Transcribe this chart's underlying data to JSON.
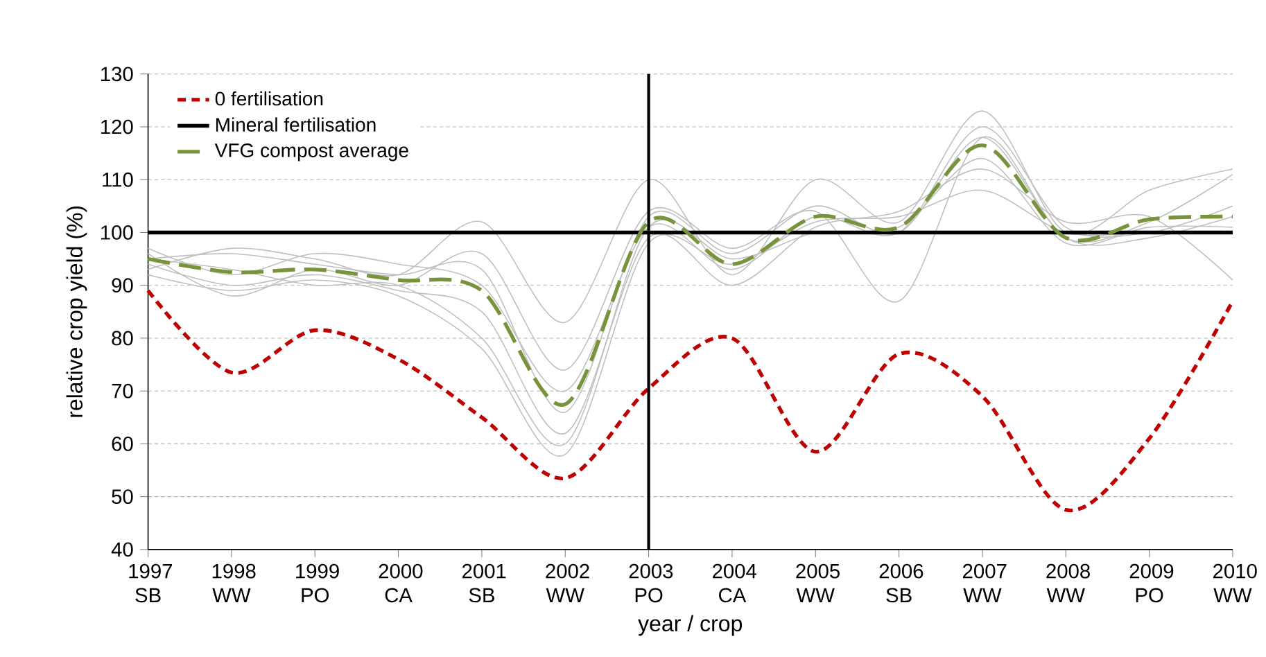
{
  "chart_data": {
    "type": "line",
    "xlabel": "year / crop",
    "ylabel": "relative crop yield (%)",
    "x": [
      1997,
      1998,
      1999,
      2000,
      2001,
      2002,
      2003,
      2004,
      2005,
      2006,
      2007,
      2008,
      2009,
      2010
    ],
    "xlim": [
      1997,
      2010
    ],
    "xticks": [
      {
        "value": 1997,
        "label": "1997 SB"
      },
      {
        "value": 1998,
        "label": "1998 WW"
      },
      {
        "value": 1999,
        "label": "1999 PO"
      },
      {
        "value": 2000,
        "label": "2000 CA"
      },
      {
        "value": 2001,
        "label": "2001 SB"
      },
      {
        "value": 2002,
        "label": "2002 WW"
      },
      {
        "value": 2003,
        "label": "2003 PO"
      },
      {
        "value": 2004,
        "label": "2004 CA"
      },
      {
        "value": 2005,
        "label": "2005 WW"
      },
      {
        "value": 2006,
        "label": "2006 SB"
      },
      {
        "value": 2007,
        "label": "2007 WW"
      },
      {
        "value": 2008,
        "label": "2008 WW"
      },
      {
        "value": 2009,
        "label": "2009 PO"
      },
      {
        "value": 2010,
        "label": "2010 WW"
      }
    ],
    "ylim": [
      40,
      130
    ],
    "yticks": [
      40,
      50,
      60,
      70,
      80,
      90,
      100,
      110,
      120,
      130
    ],
    "grid": "y",
    "legend": "top left",
    "marker": "none",
    "series": [
      {
        "color": "#c0c0c0",
        "line_style": "solid",
        "values": [
          97,
          92,
          96,
          94,
          90,
          70,
          101,
          93,
          103,
          100,
          120,
          101,
          100,
          105
        ]
      },
      {
        "color": "#c0c0c0",
        "line_style": "solid",
        "values": [
          93,
          97,
          95,
          92,
          102,
          83,
          110,
          92,
          110,
          102,
          123,
          100,
          108,
          112
        ]
      },
      {
        "color": "#c0c0c0",
        "line_style": "solid",
        "values": [
          96,
          88,
          93,
          90,
          96,
          74,
          104,
          97,
          104,
          87,
          118,
          99,
          102,
          111
        ]
      },
      {
        "color": "#c0c0c0",
        "line_style": "solid",
        "values": [
          94,
          90,
          92,
          89,
          85,
          62,
          99,
          90,
          101,
          104,
          112,
          102,
          103,
          91
        ]
      },
      {
        "color": "#c0c0c0",
        "line_style": "solid",
        "values": [
          95,
          93,
          90,
          90,
          80,
          60,
          101,
          95,
          100,
          101,
          114,
          98,
          101,
          101
        ]
      },
      {
        "color": "#c0c0c0",
        "line_style": "solid",
        "values": [
          92,
          89,
          91,
          88,
          78,
          58,
          98,
          94,
          102,
          103,
          108,
          100,
          100,
          100
        ]
      },
      {
        "color": "#c0c0c0",
        "line_style": "solid",
        "values": [
          95,
          96,
          94,
          92,
          93,
          66,
          103,
          96,
          105,
          100,
          118,
          99,
          99,
          103
        ]
      },
      {
        "name": "0 fertilisation",
        "color": "#c00000",
        "line_style": "dotted",
        "values": [
          89,
          73.5,
          81.5,
          76,
          65,
          53.5,
          70.5,
          80,
          58.5,
          77,
          69,
          47.5,
          61,
          87
        ]
      },
      {
        "name": "Mineral fertilisation",
        "color": "#000000",
        "line_style": "solid",
        "values": [
          100,
          100,
          100,
          100,
          100,
          100,
          100,
          100,
          100,
          100,
          100,
          100,
          100,
          100
        ]
      },
      {
        "name": "VFG compost average",
        "color": "#77933c",
        "line_style": "dashed",
        "values": [
          95,
          92.5,
          93,
          91,
          89,
          67.5,
          102,
          94,
          103,
          101,
          116.5,
          99,
          102.5,
          103
        ]
      }
    ],
    "ref_lines": [
      {
        "axis": "x",
        "value": 2003,
        "color": "#000000"
      }
    ]
  }
}
